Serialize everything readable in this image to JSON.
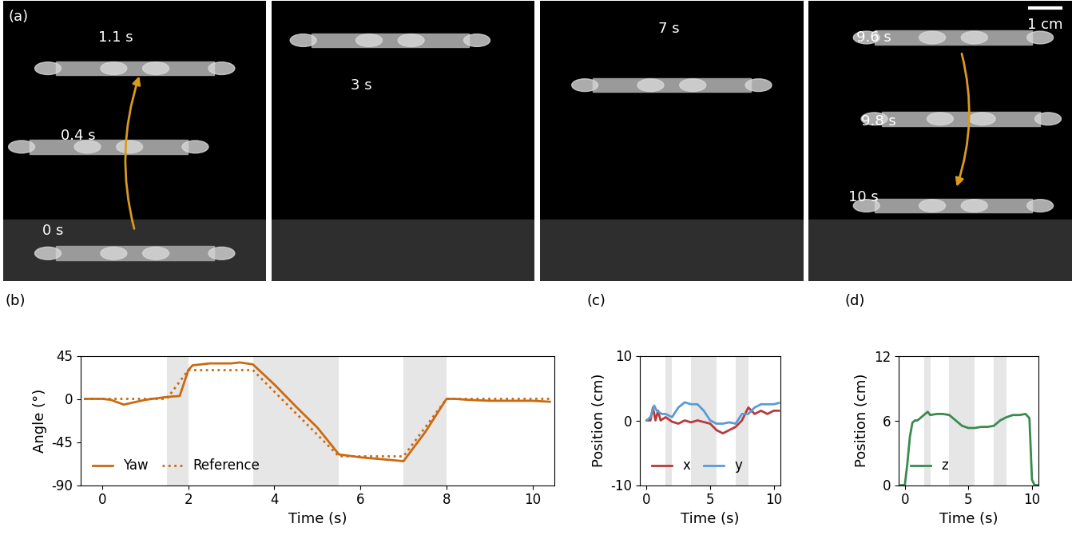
{
  "panel_labels": [
    "(a)",
    "(b)",
    "(c)",
    "(d)"
  ],
  "photos": {
    "frames": [
      {
        "time_labels": [
          "1.1 s",
          "0.4 s",
          "0 s"
        ]
      },
      {
        "time_labels": [
          "3 s"
        ]
      },
      {
        "time_labels": [
          "7 s"
        ]
      },
      {
        "time_labels": [
          "9.6 s",
          "9.8 s",
          "10 s"
        ]
      }
    ],
    "scale_bar": "1 cm"
  },
  "chart_data": [
    {
      "type": "line",
      "x_label": "Time (s)",
      "y_label": "Angle (°)",
      "xlim": [
        -0.5,
        10.5
      ],
      "ylim": [
        -90,
        45
      ],
      "xticks": [
        0,
        2,
        4,
        6,
        8,
        10
      ],
      "yticks": [
        -90,
        -45,
        0,
        45
      ],
      "shaded_intervals": [
        [
          1.5,
          2
        ],
        [
          3.5,
          5.5
        ],
        [
          7,
          8
        ]
      ],
      "legend": "lower left",
      "series": [
        {
          "name": "Yaw",
          "color": "#c96a12",
          "line_style": "solid",
          "x": [
            -0.4,
            0,
            0.2,
            0.5,
            0.7,
            1.0,
            1.5,
            1.8,
            2.0,
            2.1,
            2.5,
            3.0,
            3.2,
            3.5,
            4.0,
            4.5,
            5.0,
            5.5,
            6.0,
            6.5,
            7.0,
            7.5,
            8.0,
            8.2,
            8.5,
            9.0,
            9.5,
            10.0,
            10.4
          ],
          "values": [
            0,
            0,
            -1,
            -6,
            -4,
            -1,
            2,
            3,
            30,
            35,
            37,
            37,
            38,
            36,
            15,
            -8,
            -30,
            -58,
            -61,
            -63,
            -65,
            -35,
            0,
            0,
            -1,
            -2,
            -2,
            -2,
            -3
          ]
        },
        {
          "name": "Reference",
          "color": "#c96a12",
          "line_style": "dotted",
          "x": [
            -0.4,
            1.5,
            2.0,
            3.5,
            5.5,
            7.0,
            8.0,
            10.4
          ],
          "values": [
            0,
            0,
            30,
            30,
            -60,
            -60,
            0,
            0
          ]
        }
      ]
    },
    {
      "type": "line",
      "x_label": "Time (s)",
      "y_label": "Position (cm)",
      "xlim": [
        -0.5,
        10.5
      ],
      "ylim": [
        -10,
        10
      ],
      "xticks": [
        0,
        5,
        10
      ],
      "yticks": [
        -10,
        0,
        10
      ],
      "shaded_intervals": [
        [
          1.5,
          2
        ],
        [
          3.5,
          5.5
        ],
        [
          7,
          8
        ]
      ],
      "legend": "lower left",
      "series": [
        {
          "name": "x",
          "color": "#b83a3a",
          "line_style": "solid",
          "x": [
            0,
            0.3,
            0.5,
            0.7,
            0.9,
            1.1,
            1.5,
            2,
            2.5,
            3,
            3.5,
            4,
            5,
            5.5,
            6,
            6.5,
            7,
            7.5,
            8,
            8.5,
            9,
            9.5,
            10,
            10.4
          ],
          "values": [
            0,
            0,
            2,
            0,
            1.5,
            0,
            0.5,
            -0.2,
            -0.5,
            0,
            -0.3,
            0,
            -0.5,
            -1.5,
            -2,
            -1.5,
            -1,
            0,
            2,
            1,
            1.5,
            1,
            1.5,
            1.5
          ]
        },
        {
          "name": "y",
          "color": "#5b9bd5",
          "line_style": "solid",
          "x": [
            0,
            0.3,
            0.6,
            0.8,
            1.2,
            1.5,
            2,
            2.5,
            3,
            3.5,
            4,
            4.5,
            5,
            5.5,
            6,
            6.5,
            7,
            7.5,
            8,
            8.5,
            9,
            9.5,
            10,
            10.4
          ],
          "values": [
            0,
            0.5,
            2.3,
            1.5,
            1,
            1,
            0.5,
            2,
            2.8,
            2.5,
            2.5,
            1.5,
            0,
            -0.5,
            -0.5,
            -0.3,
            -0.5,
            1,
            1,
            2,
            2.5,
            2.5,
            2.5,
            2.7
          ]
        }
      ]
    },
    {
      "type": "line",
      "x_label": "Time (s)",
      "y_label": "Position (cm)",
      "xlim": [
        -0.5,
        10.5
      ],
      "ylim": [
        0,
        12
      ],
      "xticks": [
        0,
        5,
        10
      ],
      "yticks": [
        0,
        6,
        12
      ],
      "shaded_intervals": [
        [
          1.5,
          2
        ],
        [
          3.5,
          5.5
        ],
        [
          7,
          8
        ]
      ],
      "legend": "lower left",
      "series": [
        {
          "name": "z",
          "color": "#3a8a50",
          "line_style": "solid",
          "x": [
            -0.3,
            0,
            0.2,
            0.4,
            0.6,
            0.8,
            1.0,
            1.2,
            1.5,
            1.8,
            2,
            2.5,
            3,
            3.5,
            4,
            4.5,
            5,
            5.5,
            6,
            6.5,
            7,
            7.5,
            8,
            8.5,
            9,
            9.5,
            9.8,
            10,
            10.2,
            10.4
          ],
          "values": [
            0,
            0,
            2,
            4.5,
            5.8,
            6,
            6,
            6.2,
            6.5,
            6.8,
            6.5,
            6.6,
            6.6,
            6.5,
            6,
            5.5,
            5.3,
            5.3,
            5.4,
            5.4,
            5.5,
            6,
            6.3,
            6.5,
            6.5,
            6.6,
            6.2,
            0.5,
            0,
            0
          ]
        }
      ]
    }
  ]
}
